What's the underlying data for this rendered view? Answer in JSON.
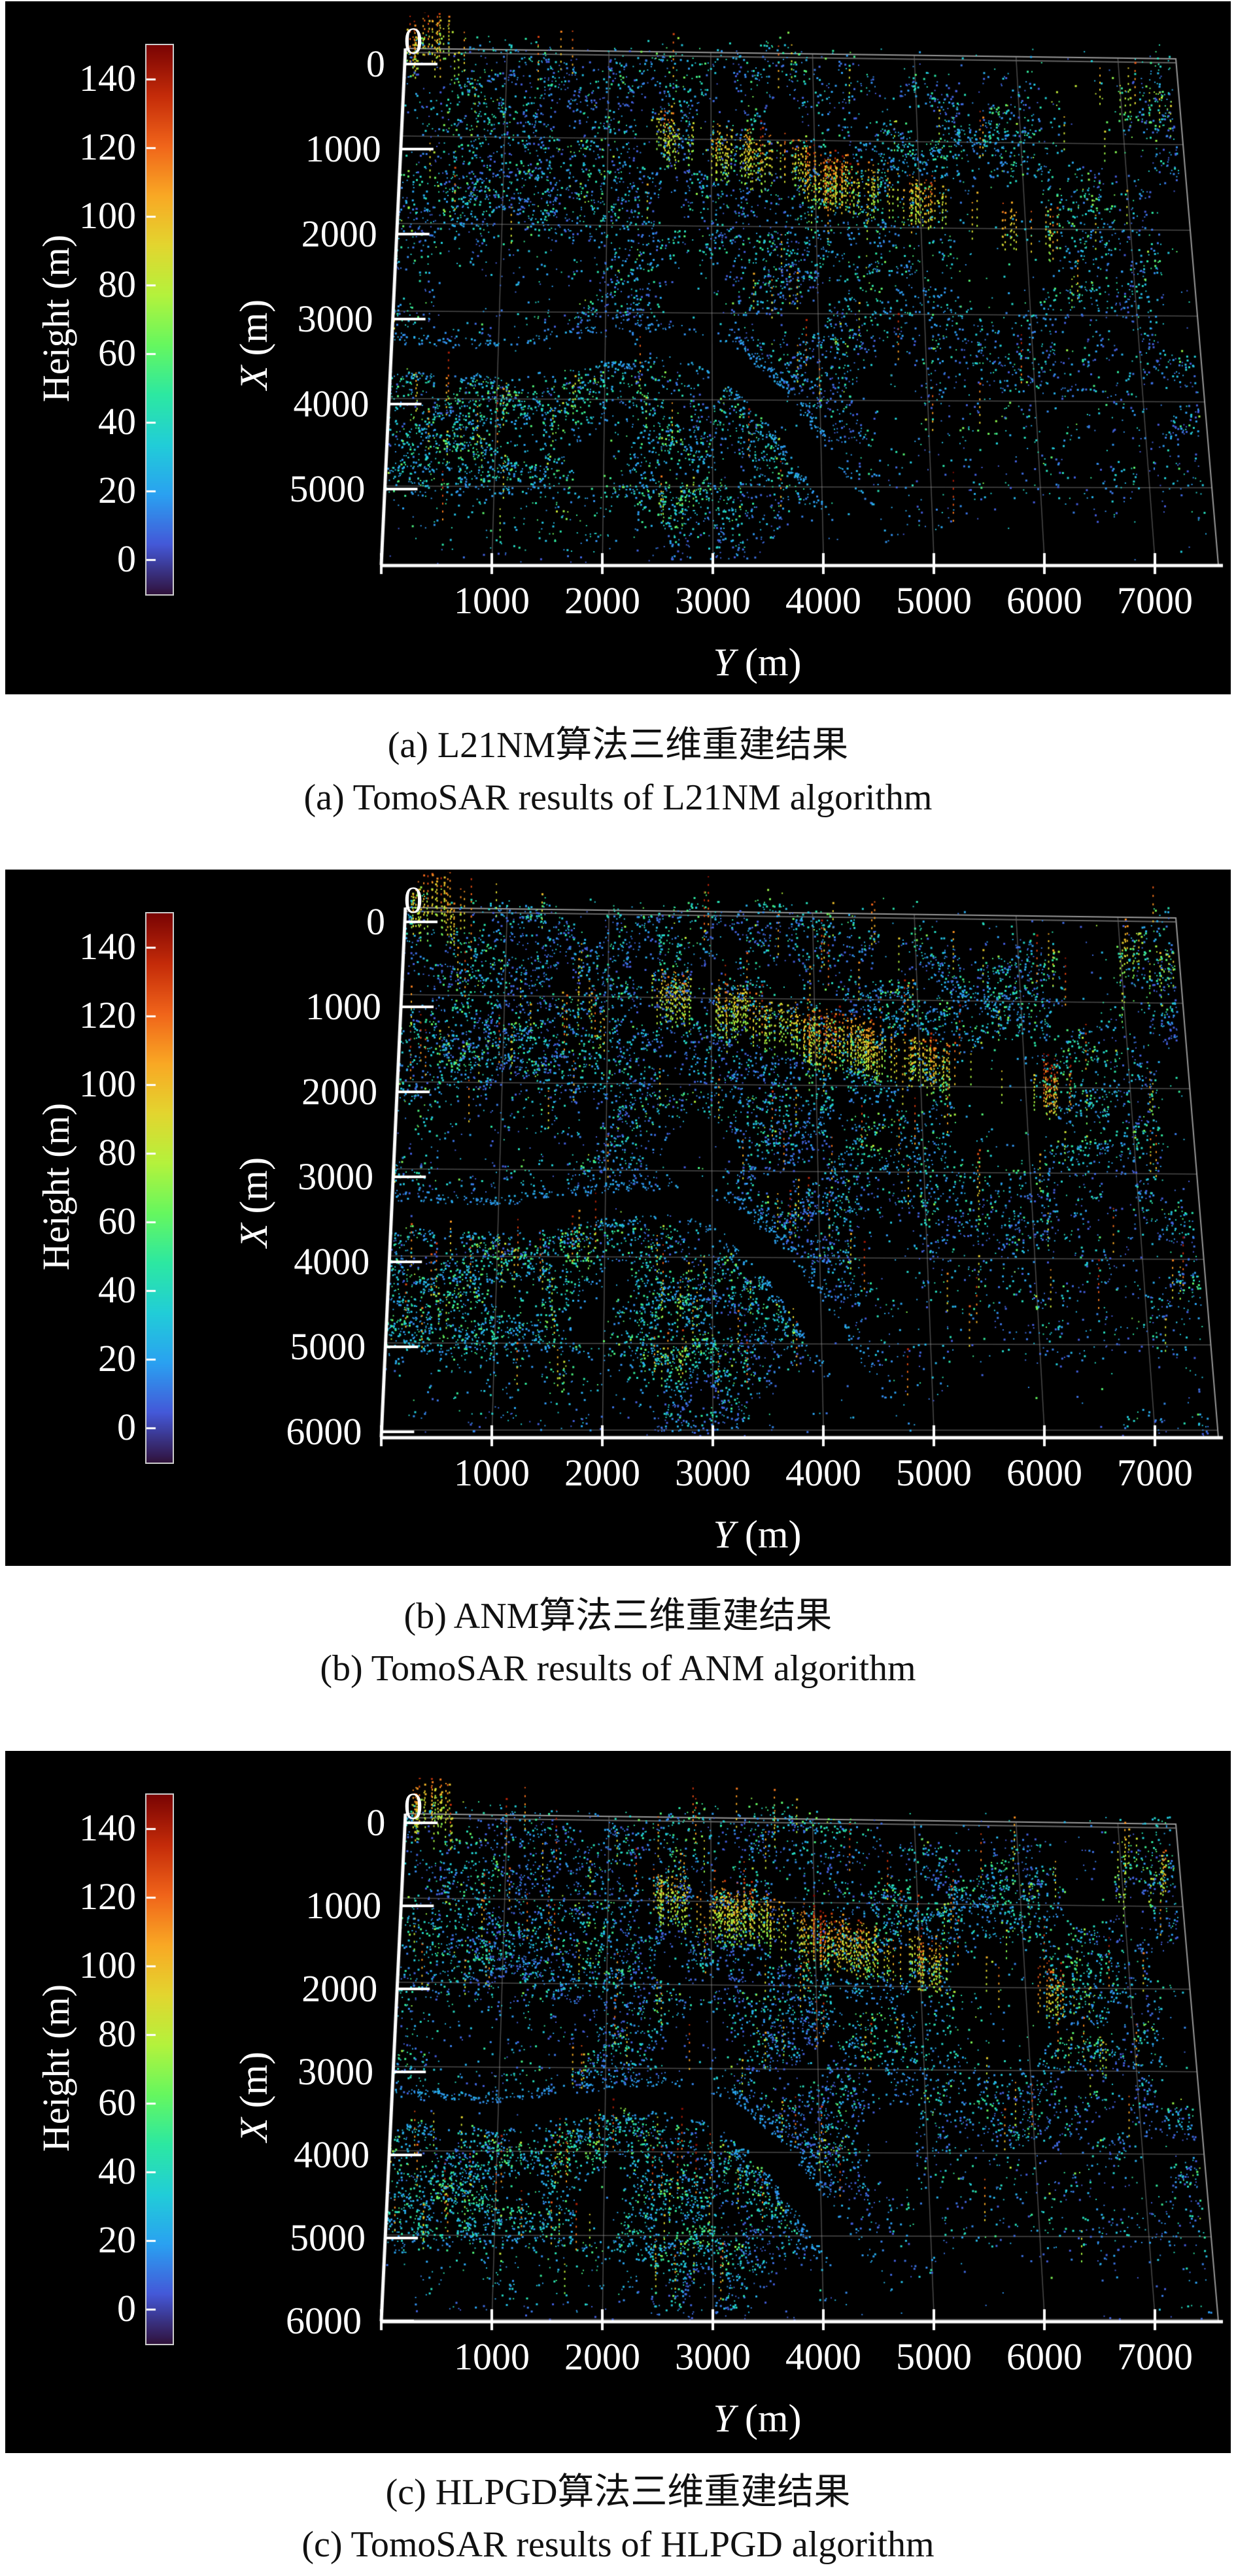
{
  "page": {
    "background": "#ffffff",
    "panel_background": "#000000",
    "text_color": "#ffffff"
  },
  "chart_data": [
    {
      "panel": "a",
      "type": "scatter",
      "projection": "3d-top-view-point-cloud",
      "title_zh": "(a) L21NM算法三维重建结果",
      "title_en": "(a) TomoSAR results of L21NM algorithm",
      "x_axis": {
        "label": "X (m)",
        "origin_tick": "0",
        "ticks": [
          "0",
          "1000",
          "2000",
          "3000",
          "4000",
          "5000"
        ],
        "range": [
          0,
          5900
        ]
      },
      "y_axis": {
        "label": "Y (m)",
        "origin_tick": "0",
        "ticks": [
          "1000",
          "2000",
          "3000",
          "4000",
          "5000",
          "6000",
          "7000"
        ],
        "range": [
          0,
          7500
        ]
      },
      "colorbar": {
        "label": "Height (m)",
        "ticks": [
          "140",
          "120",
          "100",
          "80",
          "60",
          "40",
          "20",
          "0"
        ],
        "range_m": [
          -10,
          150
        ],
        "palette": "turbo",
        "gradient_bottom_to_top": [
          "#30123b",
          "#4458d8",
          "#2aa1f1",
          "#21cdd8",
          "#2ce8a2",
          "#66f75f",
          "#b4f23c",
          "#e3d52f",
          "#f9a824",
          "#f0641a",
          "#c42b09",
          "#7a0403"
        ]
      },
      "content": "Sparse urban SAR tomography point cloud: mostly low blue/cyan scatterers, green-yellow building clusters, red-orange tall-building ridge across upper middle, dark river band bending toward bottom right, grid on, black background."
    },
    {
      "panel": "b",
      "type": "scatter",
      "projection": "3d-top-view-point-cloud",
      "title_zh": "(b) ANM算法三维重建结果",
      "title_en": "(b) TomoSAR results of ANM algorithm",
      "x_axis": {
        "label": "X (m)",
        "origin_tick": "0",
        "ticks": [
          "0",
          "1000",
          "2000",
          "3000",
          "4000",
          "5000",
          "6000"
        ],
        "range": [
          0,
          6000
        ]
      },
      "y_axis": {
        "label": "Y (m)",
        "origin_tick": "0",
        "ticks": [
          "1000",
          "2000",
          "3000",
          "4000",
          "5000",
          "6000",
          "7000"
        ],
        "range": [
          0,
          7500
        ]
      },
      "colorbar": {
        "label": "Height (m)",
        "ticks": [
          "140",
          "120",
          "100",
          "80",
          "60",
          "40",
          "20",
          "0"
        ],
        "range_m": [
          -10,
          150
        ],
        "palette": "turbo",
        "gradient_bottom_to_top": [
          "#30123b",
          "#4458d8",
          "#2aa1f1",
          "#21cdd8",
          "#2ce8a2",
          "#66f75f",
          "#b4f23c",
          "#e3d52f",
          "#f9a824",
          "#f0641a",
          "#c42b09",
          "#7a0403"
        ]
      },
      "content": "Denser reconstruction of the same urban scene; same colorbar and axes; river and street pattern clearly visible; X axis extends to 6000 m."
    },
    {
      "panel": "c",
      "type": "scatter",
      "projection": "3d-top-view-point-cloud",
      "title_zh": "(c) HLPGD算法三维重建结果",
      "title_en": "(c) TomoSAR results of HLPGD algorithm",
      "x_axis": {
        "label": "X (m)",
        "origin_tick": "0",
        "ticks": [
          "0",
          "1000",
          "2000",
          "3000",
          "4000",
          "5000",
          "6000"
        ],
        "range": [
          0,
          6000
        ]
      },
      "y_axis": {
        "label": "Y (m)",
        "origin_tick": "0",
        "ticks": [
          "1000",
          "2000",
          "3000",
          "4000",
          "5000",
          "6000",
          "7000"
        ],
        "range": [
          0,
          7500
        ]
      },
      "colorbar": {
        "label": "Height (m)",
        "ticks": [
          "140",
          "120",
          "100",
          "80",
          "60",
          "40",
          "20",
          "0"
        ],
        "range_m": [
          -10,
          150
        ],
        "palette": "turbo",
        "gradient_bottom_to_top": [
          "#30123b",
          "#4458d8",
          "#2aa1f1",
          "#21cdd8",
          "#2ce8a2",
          "#66f75f",
          "#b4f23c",
          "#e3d52f",
          "#f9a824",
          "#f0641a",
          "#c42b09",
          "#7a0403"
        ]
      },
      "content": "Dense reconstruction similar to ANM result; same urban scene, colorbar and axis layout; X axis extends to 6000 m."
    }
  ]
}
